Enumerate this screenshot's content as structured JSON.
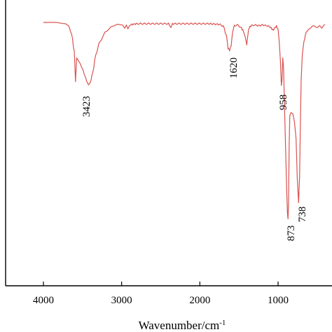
{
  "chart_data": {
    "type": "line",
    "title": "",
    "xlabel": "Wavenumber/cm",
    "xlabel_superscript": "-1",
    "ylabel": "",
    "xlim": [
      4000,
      400
    ],
    "x_reversed": true,
    "x_ticks": [
      4000,
      3000,
      2000,
      1000
    ],
    "x_tick_labels": [
      "4000",
      "3000",
      "2000",
      "1000"
    ],
    "y_axis_shown": false,
    "grid": false,
    "series": [
      {
        "color": "#d9534f",
        "x": [
          4000,
          3850,
          3720,
          3680,
          3640,
          3605,
          3590,
          3575,
          3560,
          3540,
          3500,
          3470,
          3440,
          3423,
          3400,
          3370,
          3330,
          3280,
          3200,
          3120,
          3050,
          2990,
          2960,
          2940,
          2920,
          2900,
          2870,
          2800,
          2600,
          2400,
          2370,
          2350,
          2300,
          2100,
          1900,
          1750,
          1700,
          1660,
          1640,
          1620,
          1600,
          1580,
          1560,
          1520,
          1480,
          1450,
          1420,
          1400,
          1385,
          1370,
          1340,
          1300,
          1250,
          1200,
          1150,
          1100,
          1080,
          1060,
          1040,
          1020,
          1000,
          985,
          970,
          958,
          950,
          940,
          930,
          920,
          905,
          890,
          880,
          873,
          866,
          858,
          850,
          835,
          810,
          790,
          770,
          755,
          738,
          725,
          715,
          705,
          690,
          670,
          640,
          600,
          550,
          500,
          470,
          440,
          420,
          400
        ],
        "y": [
          0.0,
          0.0,
          0.02,
          0.05,
          0.18,
          0.45,
          0.92,
          0.55,
          0.58,
          0.62,
          0.72,
          0.83,
          0.93,
          0.97,
          0.93,
          0.78,
          0.5,
          0.3,
          0.14,
          0.06,
          0.03,
          0.04,
          0.09,
          0.04,
          0.1,
          0.05,
          0.03,
          0.02,
          0.02,
          0.02,
          0.08,
          0.02,
          0.02,
          0.02,
          0.02,
          0.03,
          0.06,
          0.2,
          0.4,
          0.43,
          0.36,
          0.14,
          0.05,
          0.04,
          0.07,
          0.12,
          0.22,
          0.35,
          0.18,
          0.08,
          0.05,
          0.04,
          0.05,
          0.04,
          0.05,
          0.07,
          0.1,
          0.12,
          0.08,
          0.06,
          0.1,
          0.3,
          0.6,
          0.98,
          0.9,
          0.55,
          0.7,
          1.2,
          1.9,
          2.6,
          2.95,
          3.05,
          2.8,
          1.9,
          1.45,
          1.4,
          1.42,
          1.55,
          1.8,
          2.4,
          2.8,
          2.4,
          1.6,
          0.9,
          0.5,
          0.3,
          0.15,
          0.1,
          0.05,
          0.08,
          0.05,
          0.09,
          0.05,
          0.03
        ]
      }
    ],
    "annotations": [
      {
        "text": "3423",
        "x": 3423
      },
      {
        "text": "1620",
        "x": 1620
      },
      {
        "text": "958",
        "x": 958
      },
      {
        "text": "873",
        "x": 873
      },
      {
        "text": "738",
        "x": 738
      }
    ]
  }
}
